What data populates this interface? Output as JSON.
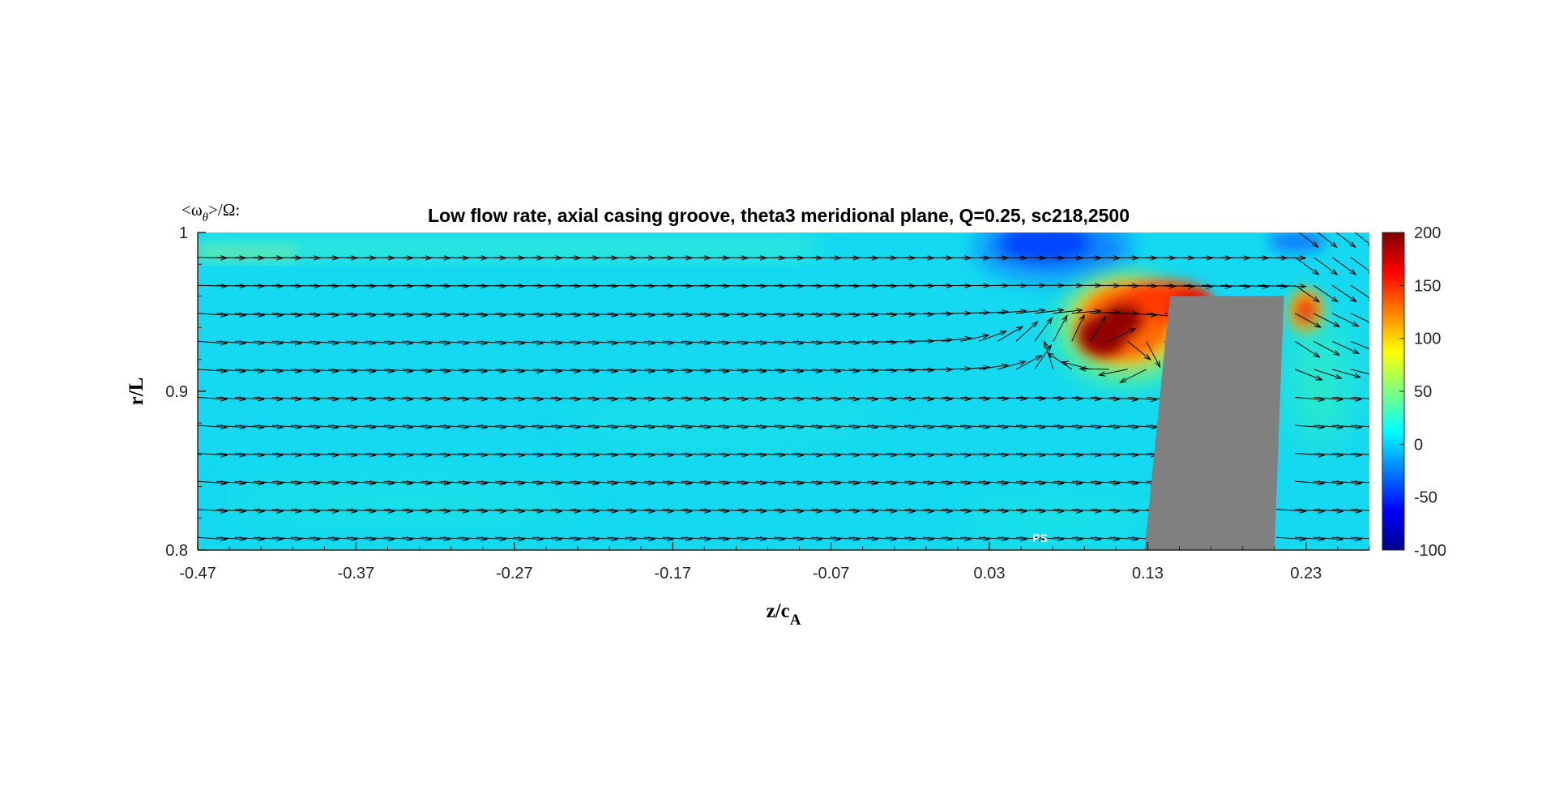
{
  "chart_data": {
    "type": "heatmap",
    "title": "Low flow rate, axial casing groove, theta3 meridional plane, Q=0.25, sc218,2500",
    "colorbar_title": {
      "pre": "<ω",
      "sub": "θ",
      "post": ">/Ω:"
    },
    "xlabel": {
      "main": "z/c",
      "sub": "A"
    },
    "ylabel": "r/L",
    "xlim": [
      -0.47,
      0.27
    ],
    "ylim": [
      0.8,
      1.0
    ],
    "x_ticks": [
      -0.47,
      -0.37,
      -0.27,
      -0.17,
      -0.07,
      0.03,
      0.13,
      0.23
    ],
    "x_tick_labels": [
      "-0.47",
      "-0.37",
      "-0.27",
      "-0.17",
      "-0.07",
      "0.03",
      "0.13",
      "0.23"
    ],
    "y_ticks": [
      0.8,
      0.9,
      1.0
    ],
    "y_tick_labels": [
      "0.8",
      "0.9",
      "1"
    ],
    "colorbar": {
      "colormap": "jet",
      "clim": [
        -100,
        200
      ],
      "ticks": [
        200,
        150,
        100,
        50,
        0,
        -50,
        -100
      ],
      "tick_labels": [
        "200",
        "150",
        "100",
        "50",
        "0",
        "-50",
        "-100"
      ]
    },
    "background_value": 15,
    "field_features": [
      {
        "name": "tip leakage vortex core",
        "x": 0.105,
        "y": 0.935,
        "value": 200
      },
      {
        "name": "blade tip shear layer",
        "x": 0.14,
        "y": 0.955,
        "value": 150
      },
      {
        "name": "trailing tip region",
        "x": 0.225,
        "y": 0.945,
        "value": 120
      },
      {
        "name": "casing groove low region",
        "x": 0.05,
        "y": 0.99,
        "value": -40
      }
    ],
    "blade": {
      "color": "#808080",
      "vertices": [
        [
          0.128,
          0.8
        ],
        [
          0.144,
          0.96
        ],
        [
          0.216,
          0.96
        ],
        [
          0.21,
          0.8
        ]
      ]
    },
    "annotation": {
      "text": "PS",
      "x": 0.062,
      "y": 0.805
    },
    "quiver": {
      "rows": 12,
      "cols": 64,
      "color": "#000000",
      "description": "in-plane velocity vectors; axial flow on left, recirculating vortex near blade tip"
    }
  },
  "colors": {
    "background": "#ffffff",
    "axis": "#262626",
    "blade": "#808080",
    "vectors": "#000000"
  }
}
